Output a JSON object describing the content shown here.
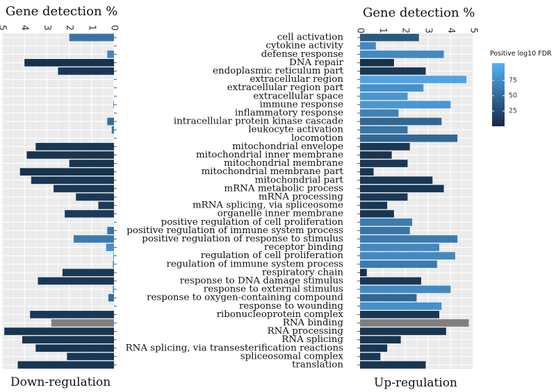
{
  "chart_data": [
    {
      "type": "bar",
      "orientation": "horizontal",
      "x_direction": "reversed",
      "title": "Gene detection %",
      "caption": "Down-regulation",
      "xlim": [
        0,
        5
      ],
      "xticks": [
        "5",
        "4",
        "3",
        "2",
        "1",
        "0"
      ],
      "grid": true,
      "categories": [
        "cell activation",
        "cytokine activity",
        "defense response",
        "DNA repair",
        "endoplasmic reticulum part",
        "extracellular region",
        "extracellular region part",
        "extracellular space",
        "immune response",
        "inflammatory response",
        "intracellular protein kinase cascade",
        "leukocyte activation",
        "locomotion",
        "mitochondrial envelope",
        "mitochondrial inner membrane",
        "mitochondrial membrane",
        "mitochondrial membrane part",
        "mitochondrial part",
        "mRNA metabolic process",
        "mRNA processing",
        "mRNA splicing, via spliceosome",
        "organelle inner membrane",
        "positive regulation of cell proliferation",
        "positive regulation of immune system process",
        "positive regulation of response to stimulus",
        "receptor binding",
        "regulation of cell proliferation",
        "regulation of immune system process",
        "respiratory chain",
        "response to DNA damage stimulus",
        "response to external stimulus",
        "response to oxygen-containing compound",
        "response to wounding",
        "ribonucleoprotein complex",
        "RNA binding",
        "RNA processing",
        "RNA splicing",
        "RNA splicing, via transesterification reactions",
        "spliceosomal complex",
        "translation"
      ],
      "values": [
        2.0,
        0,
        0.3,
        4.0,
        2.5,
        0,
        0,
        0,
        0.03,
        0,
        0.3,
        0.1,
        0,
        3.5,
        3.9,
        2.0,
        4.2,
        3.7,
        2.7,
        1.7,
        0.7,
        2.2,
        0,
        0.3,
        1.8,
        0.35,
        0.03,
        0.05,
        2.3,
        3.4,
        0.05,
        0.25,
        0,
        3.75,
        2.8,
        4.9,
        4.1,
        3.5,
        2.1,
        4.3
      ],
      "log10_fdr": [
        55,
        null,
        70,
        5,
        10,
        null,
        null,
        null,
        80,
        null,
        50,
        60,
        null,
        10,
        8,
        8,
        5,
        10,
        10,
        10,
        12,
        12,
        null,
        55,
        60,
        75,
        70,
        70,
        10,
        10,
        70,
        50,
        null,
        10,
        null,
        8,
        8,
        8,
        10,
        8
      ]
    },
    {
      "type": "bar",
      "orientation": "horizontal",
      "title": "Gene detection %",
      "caption": "Up-regulation",
      "xlim": [
        0,
        5
      ],
      "xticks": [
        "0",
        "1",
        "2",
        "3",
        "4",
        "5"
      ],
      "grid": true,
      "categories": [
        "cell activation",
        "cytokine activity",
        "defense response",
        "DNA repair",
        "endoplasmic reticulum part",
        "extracellular region",
        "extracellular region part",
        "extracellular space",
        "immune response",
        "inflammatory response",
        "intracellular protein kinase cascade",
        "leukocyte activation",
        "locomotion",
        "mitochondrial envelope",
        "mitochondrial inner membrane",
        "mitochondrial membrane",
        "mitochondrial membrane part",
        "mitochondrial part",
        "mRNA metabolic process",
        "mRNA processing",
        "mRNA splicing, via spliceosome",
        "organelle inner membrane",
        "positive regulation of cell proliferation",
        "positive regulation of immune system process",
        "positive regulation of response to stimulus",
        "receptor binding",
        "regulation of cell proliferation",
        "regulation of immune system process",
        "respiratory chain",
        "response to DNA damage stimulus",
        "response to external stimulus",
        "response to oxygen-containing compound",
        "response to wounding",
        "ribonucleoprotein complex",
        "RNA binding",
        "RNA processing",
        "RNA splicing",
        "RNA splicing, via transesterification reactions",
        "spliceosomal complex",
        "translation"
      ],
      "values": [
        2.6,
        0.7,
        3.7,
        1.5,
        2.9,
        4.7,
        2.8,
        2.1,
        4.0,
        1.7,
        3.6,
        2.1,
        4.3,
        2.2,
        1.4,
        2.1,
        0.6,
        3.2,
        3.7,
        2.1,
        1.2,
        1.5,
        2.3,
        2.2,
        4.3,
        3.5,
        4.2,
        3.4,
        0.3,
        2.7,
        4.0,
        2.5,
        3.6,
        3.5,
        4.8,
        3.8,
        1.8,
        1.2,
        0.9,
        2.9
      ],
      "log10_fdr": [
        35,
        70,
        70,
        5,
        10,
        90,
        75,
        80,
        80,
        65,
        45,
        55,
        45,
        10,
        8,
        10,
        8,
        10,
        8,
        10,
        10,
        8,
        60,
        55,
        60,
        70,
        70,
        60,
        5,
        10,
        70,
        45,
        75,
        10,
        null,
        8,
        8,
        8,
        10,
        8
      ]
    }
  ],
  "legend": {
    "title": "Positive log10 FDR",
    "ticks": [
      "75",
      "50",
      "25"
    ],
    "tick_values": [
      75,
      50,
      25
    ],
    "range": [
      0,
      100
    ],
    "colors": {
      "low": "#132b43",
      "high": "#56b1f7",
      "na": "#808080"
    }
  },
  "style": {
    "panel_bg": "#ebebeb",
    "grid_color": "#ffffff"
  }
}
